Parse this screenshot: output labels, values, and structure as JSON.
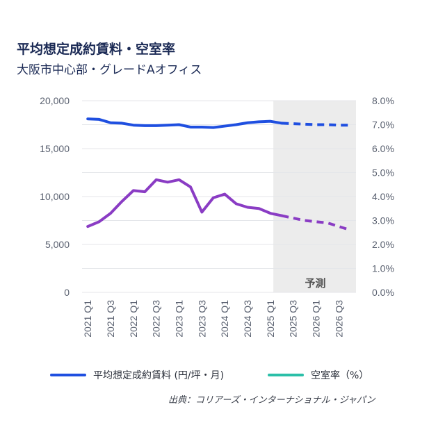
{
  "header": {
    "title": "平均想定成約賃料・空室率",
    "subtitle": "大阪市中心部・グレードAオフィス"
  },
  "legend": {
    "rent_label": "平均想定成約賃料 (円/坪・月)",
    "vacancy_label": "空室率（%）"
  },
  "forecast_label": "予測",
  "source": "出典：コリアーズ・インターナショナル・ジャパン",
  "colors": {
    "rent": "#1f4fe0",
    "vacancy": "#8a3cc4",
    "vacancy_legend": "#2bbfa8",
    "forecast_bg": "#ececec",
    "grid": "#e4e6ea"
  },
  "chart_data": {
    "type": "line",
    "categories": [
      "2021 Q1",
      "2021 Q2",
      "2021 Q3",
      "2021 Q4",
      "2022 Q1",
      "2022 Q2",
      "2022 Q3",
      "2022 Q4",
      "2023 Q1",
      "2023 Q2",
      "2023 Q3",
      "2023 Q4",
      "2024 Q1",
      "2024 Q2",
      "2024 Q3",
      "2024 Q4",
      "2025 Q1",
      "2025 Q2",
      "2025 Q3",
      "2025 Q4",
      "2026 Q1",
      "2026 Q2",
      "2026 Q3",
      "2026 Q4"
    ],
    "x_tick_labels": [
      "2021 Q1",
      "2021 Q3",
      "2022 Q1",
      "2022 Q3",
      "2023 Q1",
      "2023 Q3",
      "2024 Q1",
      "2024 Q3",
      "2025 Q1",
      "2025 Q3",
      "2026 Q1",
      "2026 Q3"
    ],
    "forecast_start": "2025 Q2",
    "y_left": {
      "ylim": [
        0,
        20000
      ],
      "ticks": [
        "0",
        "5,000",
        "10,000",
        "15,000",
        "20,000"
      ]
    },
    "y_right": {
      "ylim": [
        0,
        8
      ],
      "ticks": [
        "0.0%",
        "1.0%",
        "2.0%",
        "3.0%",
        "4.0%",
        "5.0%",
        "6.0%",
        "7.0%",
        "8.0%"
      ]
    },
    "grid": true,
    "legend_position": "bottom",
    "series": [
      {
        "name": "平均想定成約賃料 (円/坪・月)",
        "axis": "left",
        "values": [
          18100,
          18050,
          17700,
          17650,
          17450,
          17400,
          17400,
          17450,
          17500,
          17250,
          17250,
          17200,
          17350,
          17500,
          17700,
          17800,
          17850,
          17650,
          17600,
          17550,
          17500,
          17500,
          17450,
          17450
        ]
      },
      {
        "name": "空室率（%）",
        "axis": "right",
        "values": [
          2.75,
          2.95,
          3.3,
          3.8,
          4.25,
          4.2,
          4.7,
          4.6,
          4.7,
          4.4,
          3.35,
          3.95,
          4.1,
          3.7,
          3.55,
          3.5,
          3.3,
          3.2,
          3.1,
          3.0,
          2.95,
          2.9,
          2.75,
          2.6
        ]
      }
    ]
  }
}
